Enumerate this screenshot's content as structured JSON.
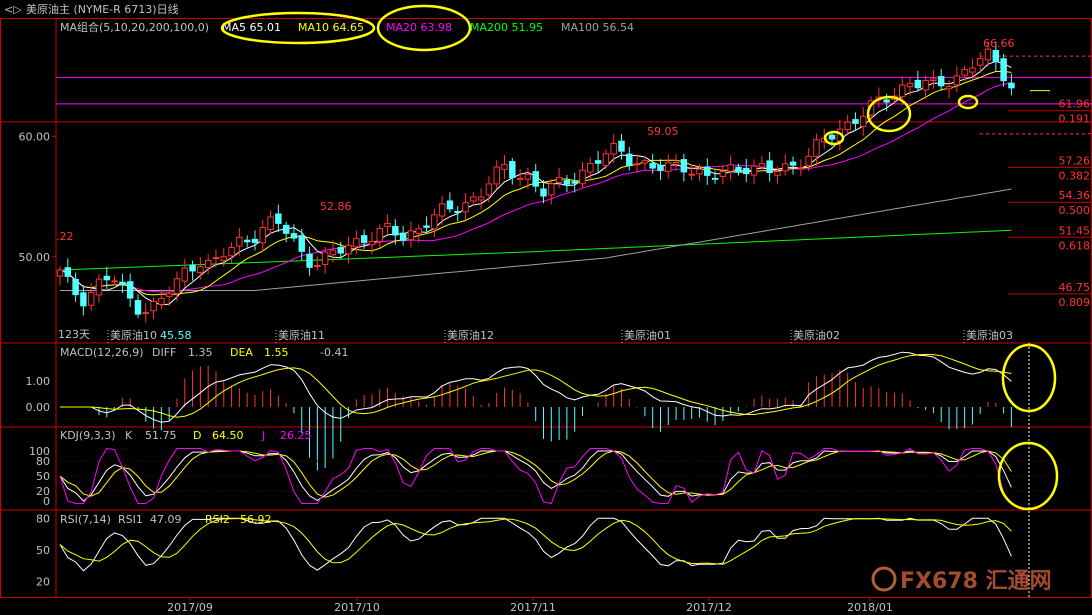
{
  "window_title": "美原油主 (NYME-R 6713)日线",
  "title_icon": "back-forward-icon",
  "colors": {
    "background": "#000000",
    "up": "#ff3232",
    "down": "#54ffff",
    "ma5": "#ffffff",
    "ma10": "#ffff00",
    "ma20": "#ff00ff",
    "ma200": "#00ff00",
    "ma100": "#a0a0a0",
    "grid": "#c80000",
    "text": "#c0c0c0",
    "highlight": "#ffff00"
  },
  "main_panel": {
    "ma_label": "MA组合(5,10,20,200,100,0)",
    "ma_values": [
      {
        "name": "MA5",
        "value": "65.01",
        "color": "#ffffff"
      },
      {
        "name": "MA10",
        "value": "64.65",
        "color": "#ffff00"
      },
      {
        "name": "MA20",
        "value": "63.98",
        "color": "#ff00ff"
      },
      {
        "name": "MA200",
        "value": "51.95",
        "color": "#00ff00"
      },
      {
        "name": "MA100",
        "value": "56.54",
        "color": "#a0a0a0"
      }
    ],
    "y_ticks": [
      "60.00",
      "50.00"
    ],
    "y_range": [
      44,
      68
    ],
    "bars_count_label": "123天",
    "annotations": {
      "left_value": ".22",
      "low": "45.58",
      "peak1": "52.86",
      "peak2": "59.05",
      "high": "66.66"
    },
    "fib_levels": [
      {
        "price": "61.96",
        "ratio": "0.191"
      },
      {
        "price": "57.26",
        "ratio": "0.382"
      },
      {
        "price": "54.36",
        "ratio": "0.500"
      },
      {
        "price": "51.45",
        "ratio": "0.618"
      },
      {
        "price": "46.75",
        "ratio": "0.809"
      }
    ],
    "contract_labels": [
      "美原油10",
      "美原油11",
      "美原油12",
      "美原油01",
      "美原油02",
      "美原油03"
    ]
  },
  "macd_panel": {
    "label": "MACD(12,26,9)",
    "diff_label": "DIFF",
    "diff_value": "1.35",
    "dea_label": "DEA",
    "dea_value": "1.55",
    "macd_value": "-0.41",
    "y_ticks": [
      "1.00",
      "0.00"
    ]
  },
  "kdj_panel": {
    "label": "KDJ(9,3,3)",
    "k_label": "K",
    "k_value": "51.75",
    "d_label": "D",
    "d_value": "64.50",
    "j_label": "J",
    "j_value": "26.25",
    "y_ticks": [
      "100",
      "80",
      "50",
      "20",
      "0"
    ]
  },
  "rsi_panel": {
    "label": "RSI(7,14)",
    "rsi1_label": "RSI1",
    "rsi1_value": "47.09",
    "rsi2_label": "RSI2",
    "rsi2_value": "56.92",
    "y_ticks": [
      "80",
      "50",
      "20"
    ]
  },
  "x_axis_labels": [
    "2017/09",
    "2017/10",
    "2017/11",
    "2017/12",
    "2018/01"
  ],
  "watermark": "FX678 汇通网",
  "chart_data": {
    "type": "candlestick",
    "series_name": "美原油主 (NYME-R 6713)日线",
    "bars": 123,
    "close_path": [
      48.6,
      47.2,
      46.5,
      47.8,
      48.4,
      47.0,
      46.0,
      45.6,
      46.4,
      47.5,
      49.0,
      49.8,
      49.2,
      50.2,
      51.2,
      51.6,
      52.4,
      52.86,
      52.0,
      50.5,
      49.4,
      49.8,
      50.5,
      51.2,
      51.6,
      51.8,
      52.2,
      51.7,
      52.2,
      53.0,
      53.6,
      54.0,
      54.6,
      55.0,
      56.4,
      57.3,
      57.0,
      56.6,
      55.2,
      55.8,
      56.4,
      57.0,
      57.6,
      58.4,
      59.05,
      58.2,
      57.6,
      57.2,
      57.4,
      57.8,
      57.2,
      56.4,
      56.8,
      57.4,
      57.6,
      57.2,
      57.0,
      57.4,
      57.8,
      58.4,
      59.4,
      60.2,
      61.0,
      61.8,
      62.4,
      63.0,
      63.8,
      64.6,
      64.4,
      64.0,
      64.6,
      65.2,
      66.1,
      66.66,
      65.8,
      64.3
    ],
    "x_labels": [
      "2017/09",
      "2017/10",
      "2017/11",
      "2017/12",
      "2018/01"
    ]
  }
}
